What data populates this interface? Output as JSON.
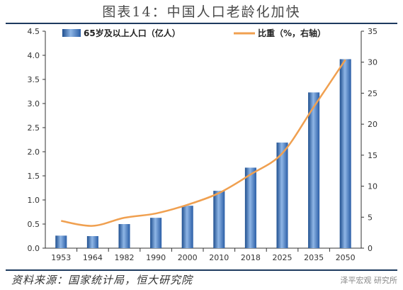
{
  "title": "图表14：中国人口老龄化加快",
  "source": "资料来源：国家统计局，恒大研究院",
  "watermark": "泽平宏观 研究所",
  "chart_data": {
    "type": "bar",
    "categories": [
      "1953",
      "1964",
      "1982",
      "1990",
      "2000",
      "2010",
      "2018",
      "2025",
      "2035",
      "2050"
    ],
    "series": [
      {
        "name": "65岁及以上人口（亿人）",
        "type": "bar",
        "axis": "left",
        "color": "#3a78c2",
        "values": [
          0.26,
          0.25,
          0.5,
          0.63,
          0.88,
          1.19,
          1.67,
          2.19,
          3.23,
          3.92
        ]
      },
      {
        "name": "比重（%，右轴）",
        "type": "line",
        "axis": "right",
        "color": "#f0a050",
        "values": [
          4.4,
          3.6,
          4.9,
          5.6,
          7.0,
          8.9,
          11.9,
          15.3,
          22.8,
          30.4
        ]
      }
    ],
    "left_axis": {
      "min": 0,
      "max": 4.5,
      "ticks": [
        "0.0",
        "0.5",
        "1.0",
        "1.5",
        "2.0",
        "2.5",
        "3.0",
        "3.5",
        "4.0",
        "4.5"
      ]
    },
    "right_axis": {
      "min": 0,
      "max": 35,
      "ticks": [
        "0",
        "5",
        "10",
        "15",
        "20",
        "25",
        "30",
        "35"
      ]
    },
    "legend_position": "top",
    "grid": false
  }
}
